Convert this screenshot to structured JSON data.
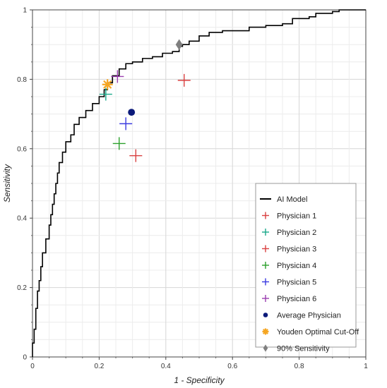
{
  "chart_data": {
    "type": "scatter",
    "xlabel": "1 - Specificity",
    "ylabel": "Sensitivity",
    "xlim": [
      0,
      1
    ],
    "ylim": [
      0,
      1
    ],
    "x_ticks": [
      0,
      0.2,
      0.4,
      0.6,
      0.8,
      1
    ],
    "y_ticks": [
      0,
      0.2,
      0.4,
      0.6,
      0.8,
      1
    ],
    "x_tick_labels": [
      "0",
      "0.2",
      "0.4",
      "0.6",
      "0.8",
      "1"
    ],
    "y_tick_labels": [
      "0",
      "0.2",
      "0.4",
      "0.6",
      "0.8",
      "1"
    ],
    "grid": true,
    "legend_position": "bottom-right",
    "series": [
      {
        "name": "AI Model",
        "kind": "line",
        "color": "#000000",
        "points": [
          [
            0,
            0
          ],
          [
            0,
            0.04
          ],
          [
            0.005,
            0.08
          ],
          [
            0.01,
            0.14
          ],
          [
            0.015,
            0.19
          ],
          [
            0.02,
            0.22
          ],
          [
            0.025,
            0.26
          ],
          [
            0.03,
            0.3
          ],
          [
            0.04,
            0.34
          ],
          [
            0.05,
            0.38
          ],
          [
            0.055,
            0.41
          ],
          [
            0.06,
            0.44
          ],
          [
            0.065,
            0.47
          ],
          [
            0.07,
            0.5
          ],
          [
            0.075,
            0.53
          ],
          [
            0.08,
            0.56
          ],
          [
            0.09,
            0.59
          ],
          [
            0.1,
            0.62
          ],
          [
            0.115,
            0.64
          ],
          [
            0.125,
            0.67
          ],
          [
            0.14,
            0.69
          ],
          [
            0.16,
            0.71
          ],
          [
            0.18,
            0.73
          ],
          [
            0.2,
            0.75
          ],
          [
            0.215,
            0.77
          ],
          [
            0.225,
            0.79
          ],
          [
            0.24,
            0.81
          ],
          [
            0.26,
            0.83
          ],
          [
            0.28,
            0.845
          ],
          [
            0.3,
            0.85
          ],
          [
            0.33,
            0.86
          ],
          [
            0.36,
            0.865
          ],
          [
            0.39,
            0.875
          ],
          [
            0.42,
            0.88
          ],
          [
            0.44,
            0.895
          ],
          [
            0.45,
            0.9
          ],
          [
            0.47,
            0.91
          ],
          [
            0.5,
            0.925
          ],
          [
            0.53,
            0.935
          ],
          [
            0.57,
            0.94
          ],
          [
            0.6,
            0.94
          ],
          [
            0.65,
            0.95
          ],
          [
            0.7,
            0.955
          ],
          [
            0.75,
            0.96
          ],
          [
            0.78,
            0.975
          ],
          [
            0.8,
            0.975
          ],
          [
            0.83,
            0.98
          ],
          [
            0.85,
            0.99
          ],
          [
            0.9,
            0.995
          ],
          [
            0.92,
            1
          ],
          [
            1,
            1
          ]
        ]
      },
      {
        "name": "Physician 1",
        "kind": "plus",
        "color": "#d94040",
        "x": 0.455,
        "y": 0.797
      },
      {
        "name": "Physician 2",
        "kind": "plus",
        "color": "#19a98a",
        "x": 0.22,
        "y": 0.757
      },
      {
        "name": "Physician 3",
        "kind": "plus",
        "color": "#d94040",
        "x": 0.31,
        "y": 0.58
      },
      {
        "name": "Physician 4",
        "kind": "plus",
        "color": "#2ca02c",
        "x": 0.26,
        "y": 0.615
      },
      {
        "name": "Physician 5",
        "kind": "plus",
        "color": "#3a3ae0",
        "x": 0.28,
        "y": 0.672
      },
      {
        "name": "Physician 6",
        "kind": "plus",
        "color": "#9b3fb0",
        "x": 0.255,
        "y": 0.808
      },
      {
        "name": "Average Physician",
        "kind": "dot",
        "color": "#0b1a7a",
        "x": 0.297,
        "y": 0.705
      },
      {
        "name": "Youden Optimal Cut-Off",
        "kind": "star",
        "color": "#f5a623",
        "x": 0.225,
        "y": 0.785
      },
      {
        "name": "90% Sensitivity",
        "kind": "diamond",
        "color": "#7f7f7f",
        "x": 0.44,
        "y": 0.9
      }
    ]
  }
}
